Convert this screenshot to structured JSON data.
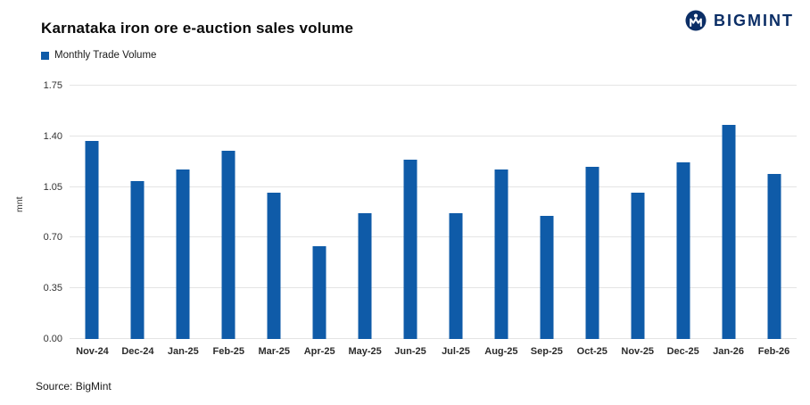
{
  "header": {
    "title": "Karnataka iron ore e-auction sales volume",
    "logo_text": "BIGMINT"
  },
  "legend": {
    "label": "Monthly Trade Volume"
  },
  "footer": {
    "source": "Source: BigMint"
  },
  "colors": {
    "bar": "#0f5ba8",
    "logo": "#0b2e66",
    "gridline": "#e4e4e4"
  },
  "chart_data": {
    "type": "bar",
    "title": "Karnataka iron ore e-auction sales volume",
    "legend": [
      "Monthly Trade Volume"
    ],
    "categories": [
      "Nov-24",
      "Dec-24",
      "Jan-25",
      "Feb-25",
      "Mar-25",
      "Apr-25",
      "May-25",
      "Jun-25",
      "Jul-25",
      "Aug-25",
      "Sep-25",
      "Oct-25",
      "Nov-25",
      "Dec-25",
      "Jan-26",
      "Feb-26"
    ],
    "values": [
      1.37,
      1.09,
      1.17,
      1.3,
      1.01,
      0.64,
      0.87,
      1.24,
      0.87,
      1.17,
      0.85,
      1.19,
      1.01,
      1.22,
      1.48,
      1.14
    ],
    "xlabel": "",
    "ylabel": "mnt",
    "ylim": [
      0,
      1.75
    ],
    "yticks": [
      0.0,
      0.35,
      0.7,
      1.05,
      1.4,
      1.75
    ],
    "grid": true,
    "legend_position": "top-left",
    "source": "Source: BigMint"
  }
}
